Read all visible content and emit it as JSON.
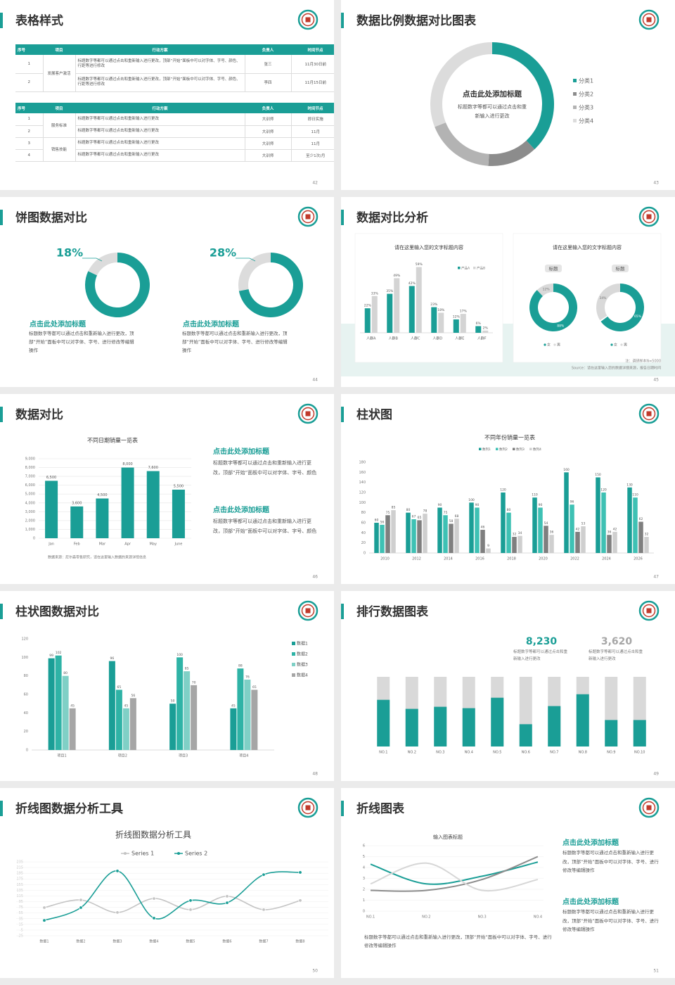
{
  "slides": [
    {
      "title": "表格样式",
      "page": "42",
      "tables": [
        {
          "headers": [
            "序号",
            "项目",
            "行动方案",
            "负责人",
            "时间节点"
          ],
          "groups": [
            {
              "label": "发展客户激活",
              "rows": [
                [
                  "1",
                  "标题数字等都可以通过点击和重新输入进行更改，顶部“开始”面板中可以对字体、字号、颜色、行距等进行修改",
                  "张三",
                  "11月30日前"
                ],
                [
                  "2",
                  "标题数字等都可以通过点击和重新输入进行更改，顶部“开始”面板中可以对字体、字号、颜色、行距等进行修改",
                  "李四",
                  "11月15日前"
                ]
              ]
            }
          ]
        },
        {
          "headers": [
            "序号",
            "项目",
            "行动方案",
            "负责人",
            "时间节点"
          ],
          "groups": [
            {
              "label": "服务标准",
              "rows": [
                [
                  "1",
                  "标题数字等都可以通过点击和重新输入进行更改",
                  "大训师",
                  "即日实施"
                ],
                [
                  "2",
                  "标题数字等都可以通过点击和重新输入进行更改",
                  "大训师",
                  "11月"
                ]
              ]
            },
            {
              "label": "销售技能",
              "rows": [
                [
                  "3",
                  "标题数字等都可以通过点击和重新输入进行更改",
                  "大训师",
                  "11月"
                ],
                [
                  "4",
                  "标题数字等都可以通过点击和重新输入进行更改",
                  "大训师",
                  "至少1次/月"
                ]
              ]
            }
          ]
        }
      ]
    },
    {
      "title": "数据比例数据对比图表",
      "page": "43",
      "chart": {
        "type": "donut",
        "heading": "点击此处添加标题",
        "text": "标题数字等都可以通过点击和重新输入进行更改",
        "categories": [
          "分类1",
          "分类2",
          "分类3",
          "分类4"
        ],
        "values": [
          38,
          13,
          18,
          31
        ],
        "colors": [
          "#1a9e96",
          "#8c8c8c",
          "#b3b3b3",
          "#dcdcdc"
        ]
      }
    },
    {
      "title": "饼图数据对比",
      "page": "44",
      "charts": [
        {
          "type": "ring",
          "value": 18,
          "value_label": "18%",
          "heading": "点击此处添加标题",
          "text": "标题数字等都可以通过点击和重新输入进行更改，顶部“开始”面板中可以对字体、字号、进行修改等编辑操作",
          "colors": [
            "#dcdcdc",
            "#1a9e96"
          ]
        },
        {
          "type": "ring",
          "value": 28,
          "value_label": "28%",
          "heading": "点击此处添加标题",
          "text": "标题数字等都可以通过点击和重新输入进行更改，顶部“开始”面板中可以对字体、字号、进行修改等编辑操作",
          "colors": [
            "#dcdcdc",
            "#1a9e96"
          ]
        }
      ]
    },
    {
      "title": "数据对比分析",
      "page": "45",
      "charts": [
        {
          "type": "bar",
          "title": "请在这里输入您的文字标题内容",
          "categories": [
            "人群A",
            "人群B",
            "人群C",
            "人群D",
            "人群E",
            "人群F"
          ],
          "ylim": [
            0,
            60
          ],
          "series": [
            {
              "name": "产品A",
              "color": "#1a9e96",
              "values": [
                22,
                35,
                42,
                23,
                12,
                6
              ],
              "value_labels": [
                "22%",
                "35%",
                "42%",
                "23%",
                "12%",
                "6%"
              ]
            },
            {
              "name": "产品B",
              "color": "#d4d4d4",
              "values": [
                33,
                49,
                59,
                18,
                17,
                2
              ],
              "value_labels": [
                "33%",
                "49%",
                "59%",
                "18%",
                "17%",
                "2%"
              ]
            }
          ]
        },
        {
          "type": "rings",
          "title": "请在这里输入您的文字标题内容",
          "legend": [
            "女",
            "男"
          ],
          "colors": [
            "#d9d9d9",
            "#1a9e96"
          ],
          "items": [
            {
              "label": "标题",
              "values": [
                12,
                88
              ],
              "value_labels": [
                "12%",
                "88%"
              ]
            },
            {
              "label": "标题",
              "values": [
                34,
                65
              ],
              "value_labels": [
                "34%",
                "65%"
              ]
            }
          ]
        }
      ],
      "notes": [
        "注：调研样本N=5000",
        "Source：请在这里输入您的数据详细来源，报告日期时间"
      ]
    },
    {
      "title": "数据对比",
      "page": "46",
      "chart": {
        "type": "bar",
        "title": "不同日期销量一览表",
        "categories": [
          "Jan",
          "Feb",
          "Mar",
          "Apr",
          "May",
          "June"
        ],
        "color": "#1a9e96",
        "values": [
          6500,
          3600,
          4500,
          8000,
          7600,
          5500
        ],
        "value_labels": [
          "6,500",
          "3,600",
          "4,500",
          "8,000",
          "7,600",
          "5,500"
        ],
        "ylim": [
          0,
          9000
        ],
        "yticks": [
          0,
          {
            "value": 1000,
            "label": "1,000"
          },
          {
            "value": 2000,
            "label": "2,000"
          },
          {
            "value": 3000,
            "label": "3,000"
          },
          {
            "value": 4000,
            "label": "4,000"
          },
          {
            "value": 5000,
            "label": "5,000"
          },
          {
            "value": 6000,
            "label": "6,000"
          },
          {
            "value": 7000,
            "label": "7,000"
          },
          {
            "value": 8000,
            "label": "8,000"
          },
          {
            "value": 9000,
            "label": "9,000"
          }
        ],
        "grid": true,
        "note": "数据来源：尼尔森零售研究，请在这里输入数据的来源详情信息"
      },
      "texts": [
        {
          "heading": "点击此处添加标题",
          "text": "标题数字等都可以通过点击和重新输入进行更改，顶部“开始”面板中可以对字体、字号、颜色"
        },
        {
          "heading": "点击此处添加标题",
          "text": "标题数字等都可以通过点击和重新输入进行更改，顶部“开始”面板中可以对字体、字号、颜色"
        }
      ]
    },
    {
      "title": "柱状图",
      "page": "47",
      "chart": {
        "type": "bar",
        "title": "不同年份销量一览表",
        "categories": [
          "2010",
          "2012",
          "2014",
          "2016",
          "2018",
          "2020",
          "2022",
          "2024",
          "2026"
        ],
        "ylim": [
          0,
          180
        ],
        "yticks": [
          0,
          20,
          40,
          60,
          80,
          100,
          120,
          140,
          160,
          180
        ],
        "legend": "top",
        "series": [
          {
            "name": "数列1",
            "color": "#1a9e96",
            "values": [
              60,
              80,
              90,
              100,
              120,
              110,
              160,
              150,
              130
            ]
          },
          {
            "name": "数列2",
            "color": "#3ec1b4",
            "values": [
              56,
              67,
              75,
              90,
              80,
              90,
              96,
              120,
              110
            ]
          },
          {
            "name": "数列3",
            "color": "#7f7f7f",
            "values": [
              75,
              65,
              58,
              46,
              32,
              54,
              42,
              36,
              62
            ]
          },
          {
            "name": "数列4",
            "color": "#cfcfcf",
            "values": [
              85,
              78,
              68,
              9,
              34,
              36,
              53,
              42,
              32
            ]
          }
        ]
      }
    },
    {
      "title": "柱状图数据对比",
      "page": "48",
      "chart": {
        "type": "bar",
        "categories": [
          "项目1",
          "项目2",
          "项目3",
          "项目4"
        ],
        "ylim": [
          0,
          120
        ],
        "yticks": [
          0,
          20,
          40,
          60,
          80,
          100,
          120
        ],
        "legend": "right",
        "series": [
          {
            "name": "数据1",
            "color": "#1a9e96",
            "values": [
              99,
              96,
              50,
              45
            ]
          },
          {
            "name": "数据2",
            "color": "#2fb3a6",
            "values": [
              102,
              65,
              100,
              88
            ]
          },
          {
            "name": "数据3",
            "color": "#7fd0c6",
            "values": [
              80,
              45,
              85,
              76
            ]
          },
          {
            "name": "数据4",
            "color": "#a6a6a6",
            "values": [
              45,
              56,
              70,
              65
            ]
          }
        ]
      }
    },
    {
      "title": "排行数据图表",
      "page": "49",
      "stats": [
        {
          "value": "8,230",
          "text": "标题数字等都可以通过点击和重新输入进行更改",
          "color": "#1a9e96"
        },
        {
          "value": "3,620",
          "text": "标题数字等都可以通过点击和重新输入进行更改",
          "color": "#a6a6a6"
        }
      ],
      "chart": {
        "type": "stacked-percent",
        "categories": [
          "NO.1",
          "NO.2",
          "NO.3",
          "NO.4",
          "NO.5",
          "NO.6",
          "NO.7",
          "NO.8",
          "NO.9",
          "NO.10"
        ],
        "values": [
          67,
          54,
          57,
          55,
          70,
          32,
          58,
          75,
          38,
          38
        ],
        "ylim": [
          0,
          100
        ],
        "colors": [
          "#1a9e96",
          "#d9d9d9"
        ]
      }
    },
    {
      "title": "折线图数据分析工具",
      "page": "50",
      "chart": {
        "type": "line",
        "title": "折线图数据分析工具",
        "categories": [
          "数据1",
          "数据2",
          "数据3",
          "数据4",
          "数据5",
          "数据6",
          "数据7",
          "数据8"
        ],
        "ylim": [
          -25,
          235
        ],
        "yticks": [
          -25,
          -5,
          15,
          35,
          55,
          75,
          95,
          115,
          135,
          155,
          175,
          195,
          215,
          235
        ],
        "series": [
          {
            "name": "Series 1",
            "color": "#c4c4c4",
            "values": [
              74,
              101,
              57,
              106,
              67,
              114,
              67,
              99
            ]
          },
          {
            "name": "Series 2",
            "color": "#1a9e96",
            "values": [
              29,
              74,
              203,
              37,
              99,
              91,
              190,
              198
            ]
          }
        ]
      }
    },
    {
      "title": "折线图表",
      "page": "51",
      "chart": {
        "type": "line",
        "title": "输入图表标题",
        "categories": [
          "NO.1",
          "NO.2",
          "NO.3",
          "NO.4"
        ],
        "ylim": [
          0,
          6
        ],
        "yticks": [
          0,
          1,
          2,
          3,
          4,
          5,
          6
        ],
        "series": [
          {
            "color": "#1a9e96",
            "values": [
              4.3,
              2.5,
              3.2,
              4.5
            ]
          },
          {
            "color": "#8c8c8c",
            "values": [
              1.9,
              1.9,
              2.9,
              5.0
            ]
          },
          {
            "color": "#d6d6d6",
            "values": [
              2.5,
              4.4,
              1.9,
              2.9
            ]
          }
        ]
      },
      "texts": [
        {
          "heading": "点击此处添加标题",
          "text": "标题数字等都可以通过点击和重新输入进行更改，顶部“开始”面板中可以对字体、字号、进行修改等编辑操作"
        },
        {
          "heading": "点击此处添加标题",
          "text": "标题数字等都可以通过点击和重新输入进行更改，顶部“开始”面板中可以对字体、字号、进行修改等编辑操作"
        }
      ],
      "footer": "标题数字等都可以通过点击和重新输入进行更改，顶部“开始”面板中可以对字体、字号、进行修改等编辑操作"
    }
  ]
}
